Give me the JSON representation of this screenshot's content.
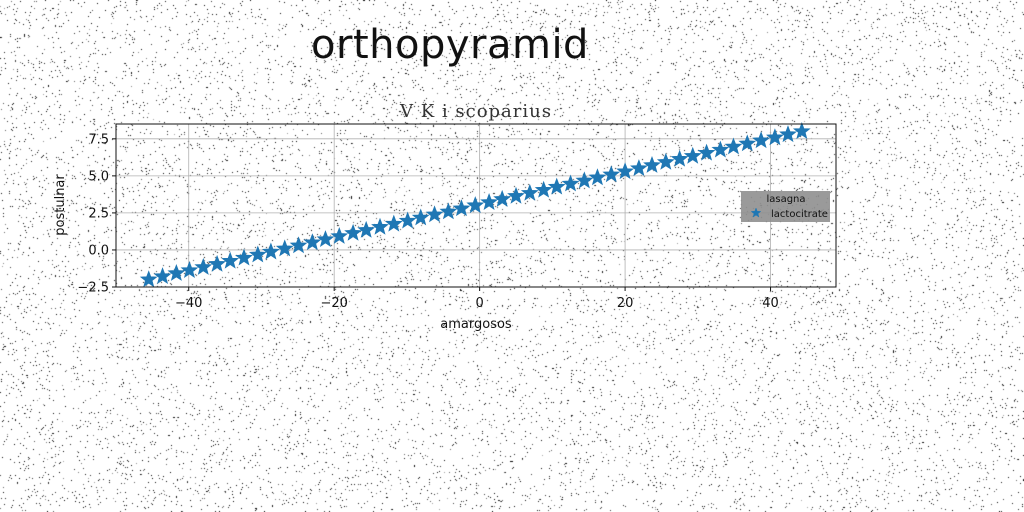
{
  "figure_title": "orthopyramid",
  "chart_data": {
    "type": "scatter",
    "title": "V K i scoparius",
    "xlabel": "amargosos",
    "ylabel": "postulnar",
    "xlim": [
      -50,
      49
    ],
    "ylim": [
      -2.5,
      8.5
    ],
    "xticks": [
      -40,
      -20,
      0,
      20,
      40
    ],
    "xtick_labels": [
      "−40",
      "−20",
      "0",
      "20",
      "40"
    ],
    "yticks": [
      -2.5,
      0.0,
      2.5,
      5.0,
      7.5
    ],
    "ytick_labels": [
      "−2.5",
      "0.0",
      "2.5",
      "5.0",
      "7.5"
    ],
    "grid": true,
    "legend": {
      "title": "lasagna",
      "placement": "right"
    },
    "series": [
      {
        "name": "lactocitrate",
        "marker": "star",
        "color": "#1f77b4",
        "x": [
          -45.5,
          -43.6,
          -41.7,
          -39.9,
          -38.0,
          -36.1,
          -34.3,
          -32.4,
          -30.5,
          -28.7,
          -26.8,
          -24.9,
          -23.0,
          -21.2,
          -19.3,
          -17.4,
          -15.6,
          -13.7,
          -11.8,
          -9.9,
          -8.1,
          -6.2,
          -4.3,
          -2.5,
          -0.6,
          1.3,
          3.1,
          5.0,
          6.9,
          8.8,
          10.6,
          12.5,
          14.4,
          16.2,
          18.1,
          20.0,
          21.9,
          23.7,
          25.6,
          27.5,
          29.3,
          31.2,
          33.1,
          34.9,
          36.8,
          38.7,
          40.6,
          42.4,
          44.3
        ],
        "y": [
          -2.0,
          -1.79,
          -1.58,
          -1.38,
          -1.17,
          -0.96,
          -0.75,
          -0.54,
          -0.33,
          -0.13,
          0.08,
          0.29,
          0.5,
          0.71,
          0.92,
          1.13,
          1.33,
          1.54,
          1.75,
          1.96,
          2.17,
          2.38,
          2.58,
          2.79,
          3.0,
          3.21,
          3.42,
          3.63,
          3.83,
          4.04,
          4.25,
          4.46,
          4.67,
          4.88,
          5.08,
          5.29,
          5.5,
          5.71,
          5.92,
          6.13,
          6.33,
          6.54,
          6.75,
          6.96,
          7.17,
          7.38,
          7.58,
          7.79,
          8.0
        ]
      }
    ]
  }
}
